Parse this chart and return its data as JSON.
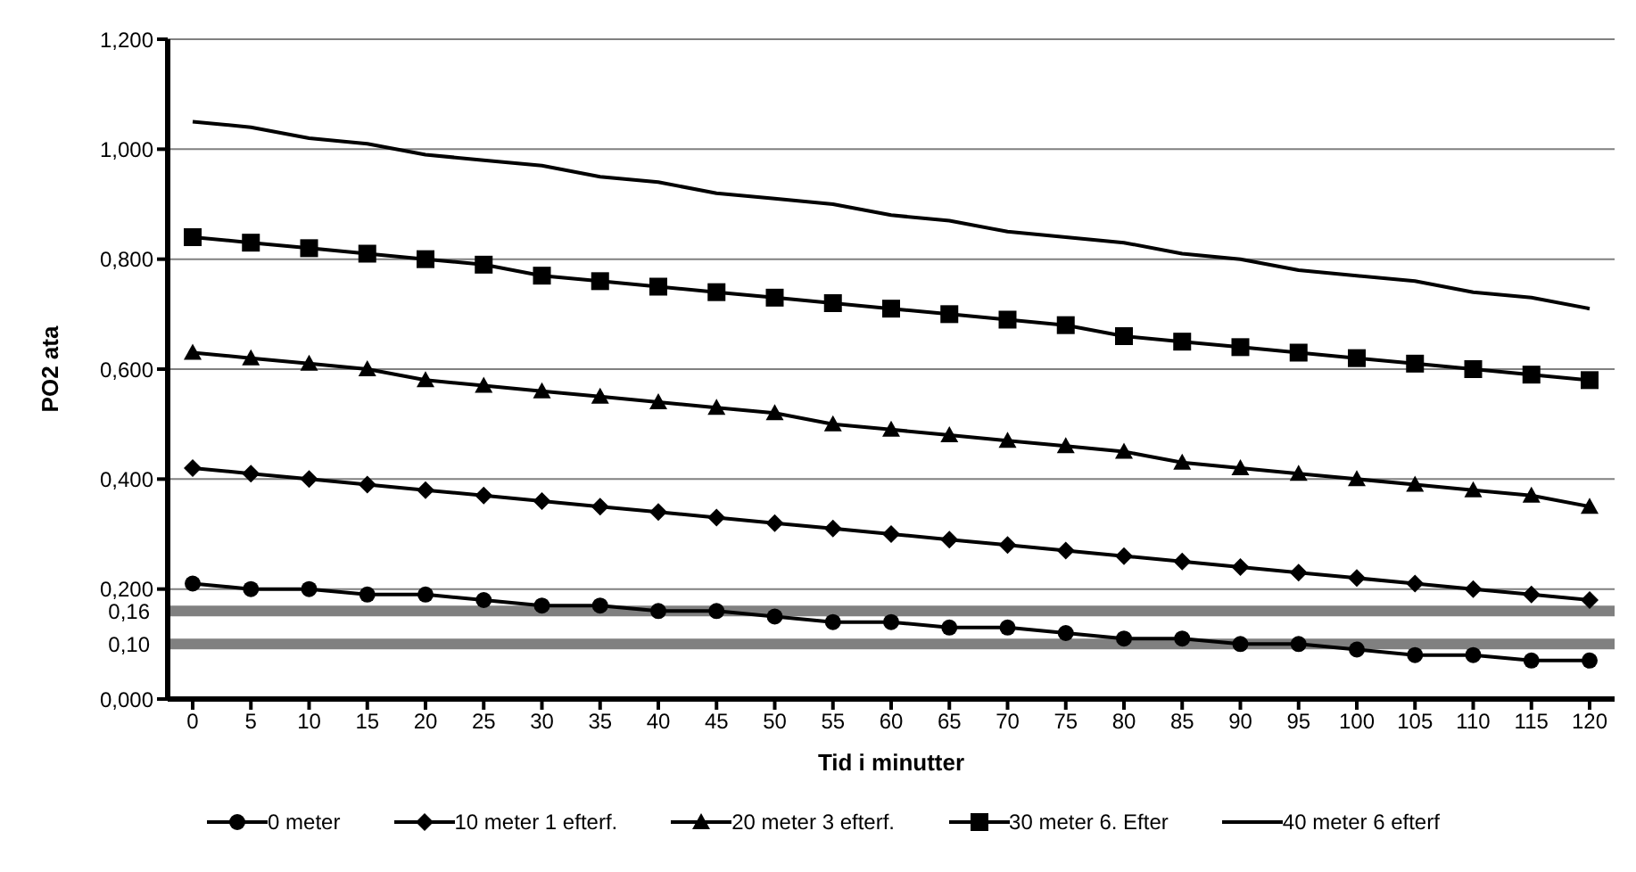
{
  "chart_data": {
    "type": "line",
    "xlabel": "Tid i minutter",
    "ylabel": "PO2 ata",
    "categories": [
      "0",
      "5",
      "10",
      "15",
      "20",
      "25",
      "30",
      "35",
      "40",
      "45",
      "50",
      "55",
      "60",
      "65",
      "70",
      "75",
      "80",
      "85",
      "90",
      "95",
      "100",
      "105",
      "110",
      "115",
      "120"
    ],
    "series": [
      {
        "name": "0 meter",
        "color": "#000000",
        "marker": "circle",
        "values": [
          0.21,
          0.2,
          0.2,
          0.19,
          0.19,
          0.18,
          0.17,
          0.17,
          0.16,
          0.16,
          0.15,
          0.14,
          0.14,
          0.13,
          0.13,
          0.12,
          0.11,
          0.11,
          0.1,
          0.1,
          0.09,
          0.08,
          0.08,
          0.07,
          0.07
        ]
      },
      {
        "name": "10 meter 1 efterf.",
        "color": "#000000",
        "marker": "diamond",
        "values": [
          0.42,
          0.41,
          0.4,
          0.39,
          0.38,
          0.37,
          0.36,
          0.35,
          0.34,
          0.33,
          0.32,
          0.31,
          0.3,
          0.29,
          0.28,
          0.27,
          0.26,
          0.25,
          0.24,
          0.23,
          0.22,
          0.21,
          0.2,
          0.19,
          0.18
        ]
      },
      {
        "name": "20 meter 3 efterf.",
        "color": "#000000",
        "marker": "triangle",
        "values": [
          0.63,
          0.62,
          0.61,
          0.6,
          0.58,
          0.57,
          0.56,
          0.55,
          0.54,
          0.53,
          0.52,
          0.5,
          0.49,
          0.48,
          0.47,
          0.46,
          0.45,
          0.43,
          0.42,
          0.41,
          0.4,
          0.39,
          0.38,
          0.37,
          0.35
        ]
      },
      {
        "name": "30 meter 6. Efter",
        "color": "#000000",
        "marker": "square",
        "values": [
          0.84,
          0.83,
          0.82,
          0.81,
          0.8,
          0.79,
          0.77,
          0.76,
          0.75,
          0.74,
          0.73,
          0.72,
          0.71,
          0.7,
          0.69,
          0.68,
          0.66,
          0.65,
          0.64,
          0.63,
          0.62,
          0.61,
          0.6,
          0.59,
          0.58
        ]
      },
      {
        "name": "40 meter 6 efterf",
        "color": "#000000",
        "marker": "none",
        "values": [
          1.05,
          1.04,
          1.02,
          1.01,
          0.99,
          0.98,
          0.97,
          0.95,
          0.94,
          0.92,
          0.91,
          0.9,
          0.88,
          0.87,
          0.85,
          0.84,
          0.83,
          0.81,
          0.8,
          0.78,
          0.77,
          0.76,
          0.74,
          0.73,
          0.71
        ]
      }
    ],
    "ylim": [
      0,
      1.2
    ],
    "yticks": [
      {
        "value": 0,
        "label": "0,000"
      },
      {
        "value": 0.2,
        "label": "0,200"
      },
      {
        "value": 0.4,
        "label": "0,400"
      },
      {
        "value": 0.6,
        "label": "0,600"
      },
      {
        "value": 0.8,
        "label": "0,800"
      },
      {
        "value": 1,
        "label": "1,000"
      },
      {
        "value": 1.2,
        "label": "1,200"
      }
    ],
    "ref_lines": [
      {
        "axis": "y",
        "value": 0.16,
        "color": "#808080",
        "label": "0,16"
      },
      {
        "axis": "y",
        "value": 0.1,
        "color": "#808080",
        "label": "0,10"
      }
    ],
    "grid": "y",
    "legend": "bottom",
    "line_style": "solid"
  }
}
